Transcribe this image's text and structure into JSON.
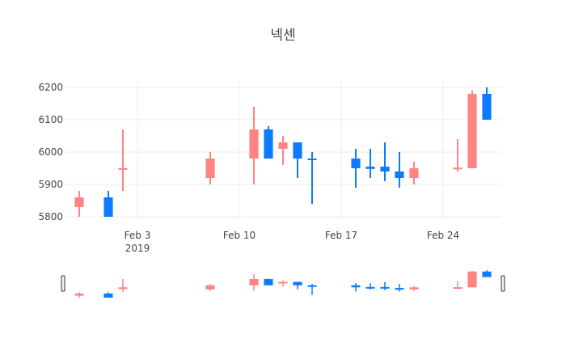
{
  "chart_data": {
    "type": "candlestick",
    "title": "넥센",
    "colors": {
      "increasing": "#ff8383",
      "decreasing": "#0c7bff"
    },
    "ylim": [
      5790,
      6220
    ],
    "yticks": [
      5800,
      5900,
      6000,
      6100,
      6200
    ],
    "xlim": [
      "2019-01-29",
      "2019-02-28"
    ],
    "xticks": [
      {
        "date": "2019-02-03",
        "label": "Feb 3",
        "sublabel": "2019"
      },
      {
        "date": "2019-02-10",
        "label": "Feb 10"
      },
      {
        "date": "2019-02-17",
        "label": "Feb 17"
      },
      {
        "date": "2019-02-24",
        "label": "Feb 24"
      }
    ],
    "rangeslider": true,
    "candles": [
      {
        "date": "2019-01-30",
        "open": 5830,
        "high": 5880,
        "low": 5800,
        "close": 5860
      },
      {
        "date": "2019-02-01",
        "open": 5860,
        "high": 5880,
        "low": 5800,
        "close": 5800
      },
      {
        "date": "2019-02-02",
        "open": 5950,
        "high": 6070,
        "low": 5880,
        "close": 5950
      },
      {
        "date": "2019-02-08",
        "open": 5920,
        "high": 6000,
        "low": 5900,
        "close": 5980
      },
      {
        "date": "2019-02-11",
        "open": 5980,
        "high": 6140,
        "low": 5900,
        "close": 6070
      },
      {
        "date": "2019-02-12",
        "open": 6070,
        "high": 6080,
        "low": 5980,
        "close": 5980
      },
      {
        "date": "2019-02-13",
        "open": 6010,
        "high": 6050,
        "low": 5960,
        "close": 6030
      },
      {
        "date": "2019-02-14",
        "open": 6030,
        "high": 6030,
        "low": 5920,
        "close": 5980
      },
      {
        "date": "2019-02-15",
        "open": 5980,
        "high": 6000,
        "low": 5840,
        "close": 5975
      },
      {
        "date": "2019-02-18",
        "open": 5980,
        "high": 6010,
        "low": 5890,
        "close": 5950
      },
      {
        "date": "2019-02-19",
        "open": 5955,
        "high": 6010,
        "low": 5920,
        "close": 5948
      },
      {
        "date": "2019-02-20",
        "open": 5955,
        "high": 6030,
        "low": 5910,
        "close": 5940
      },
      {
        "date": "2019-02-21",
        "open": 5940,
        "high": 6000,
        "low": 5890,
        "close": 5920
      },
      {
        "date": "2019-02-22",
        "open": 5920,
        "high": 5970,
        "low": 5900,
        "close": 5950
      },
      {
        "date": "2019-02-25",
        "open": 5948,
        "high": 6040,
        "low": 5940,
        "close": 5952
      },
      {
        "date": "2019-02-26",
        "open": 5950,
        "high": 6190,
        "low": 5950,
        "close": 6180
      },
      {
        "date": "2019-02-27",
        "open": 6180,
        "high": 6200,
        "low": 6100,
        "close": 6100
      }
    ]
  }
}
